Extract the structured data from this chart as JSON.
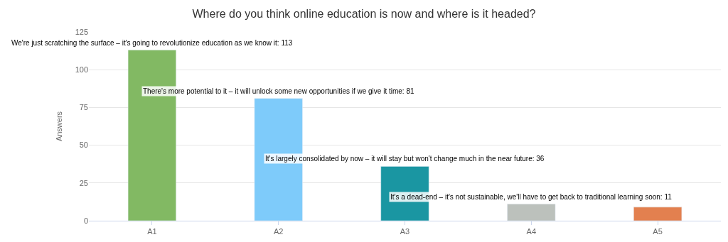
{
  "chart_data": {
    "type": "bar",
    "title": "Where do you think online education is now and where is it headed?",
    "ylabel": "Answers",
    "categories": [
      "A1",
      "A2",
      "A3",
      "A4",
      "A5"
    ],
    "values": [
      113,
      81,
      36,
      11,
      9
    ],
    "colors": [
      "#82b963",
      "#7ecbfa",
      "#1a96a2",
      "#bcc1bc",
      "#e3804f"
    ],
    "value_labels": [
      "We're just scratching the surface – it's going to revolutionize education as we know it: 113",
      "There's more potential to it – it will unlock some new opportunities if we give it time: 81",
      "It's largely consolidated by now – it will stay but won't change much in the near future: 36",
      "It's a dead-end – it's not sustainable, we'll have to get back to traditional learning soon: 11",
      null
    ],
    "ylim": [
      0,
      125
    ],
    "yticks": [
      0,
      25,
      50,
      75,
      100,
      125
    ],
    "grid": "y",
    "legend": false
  }
}
